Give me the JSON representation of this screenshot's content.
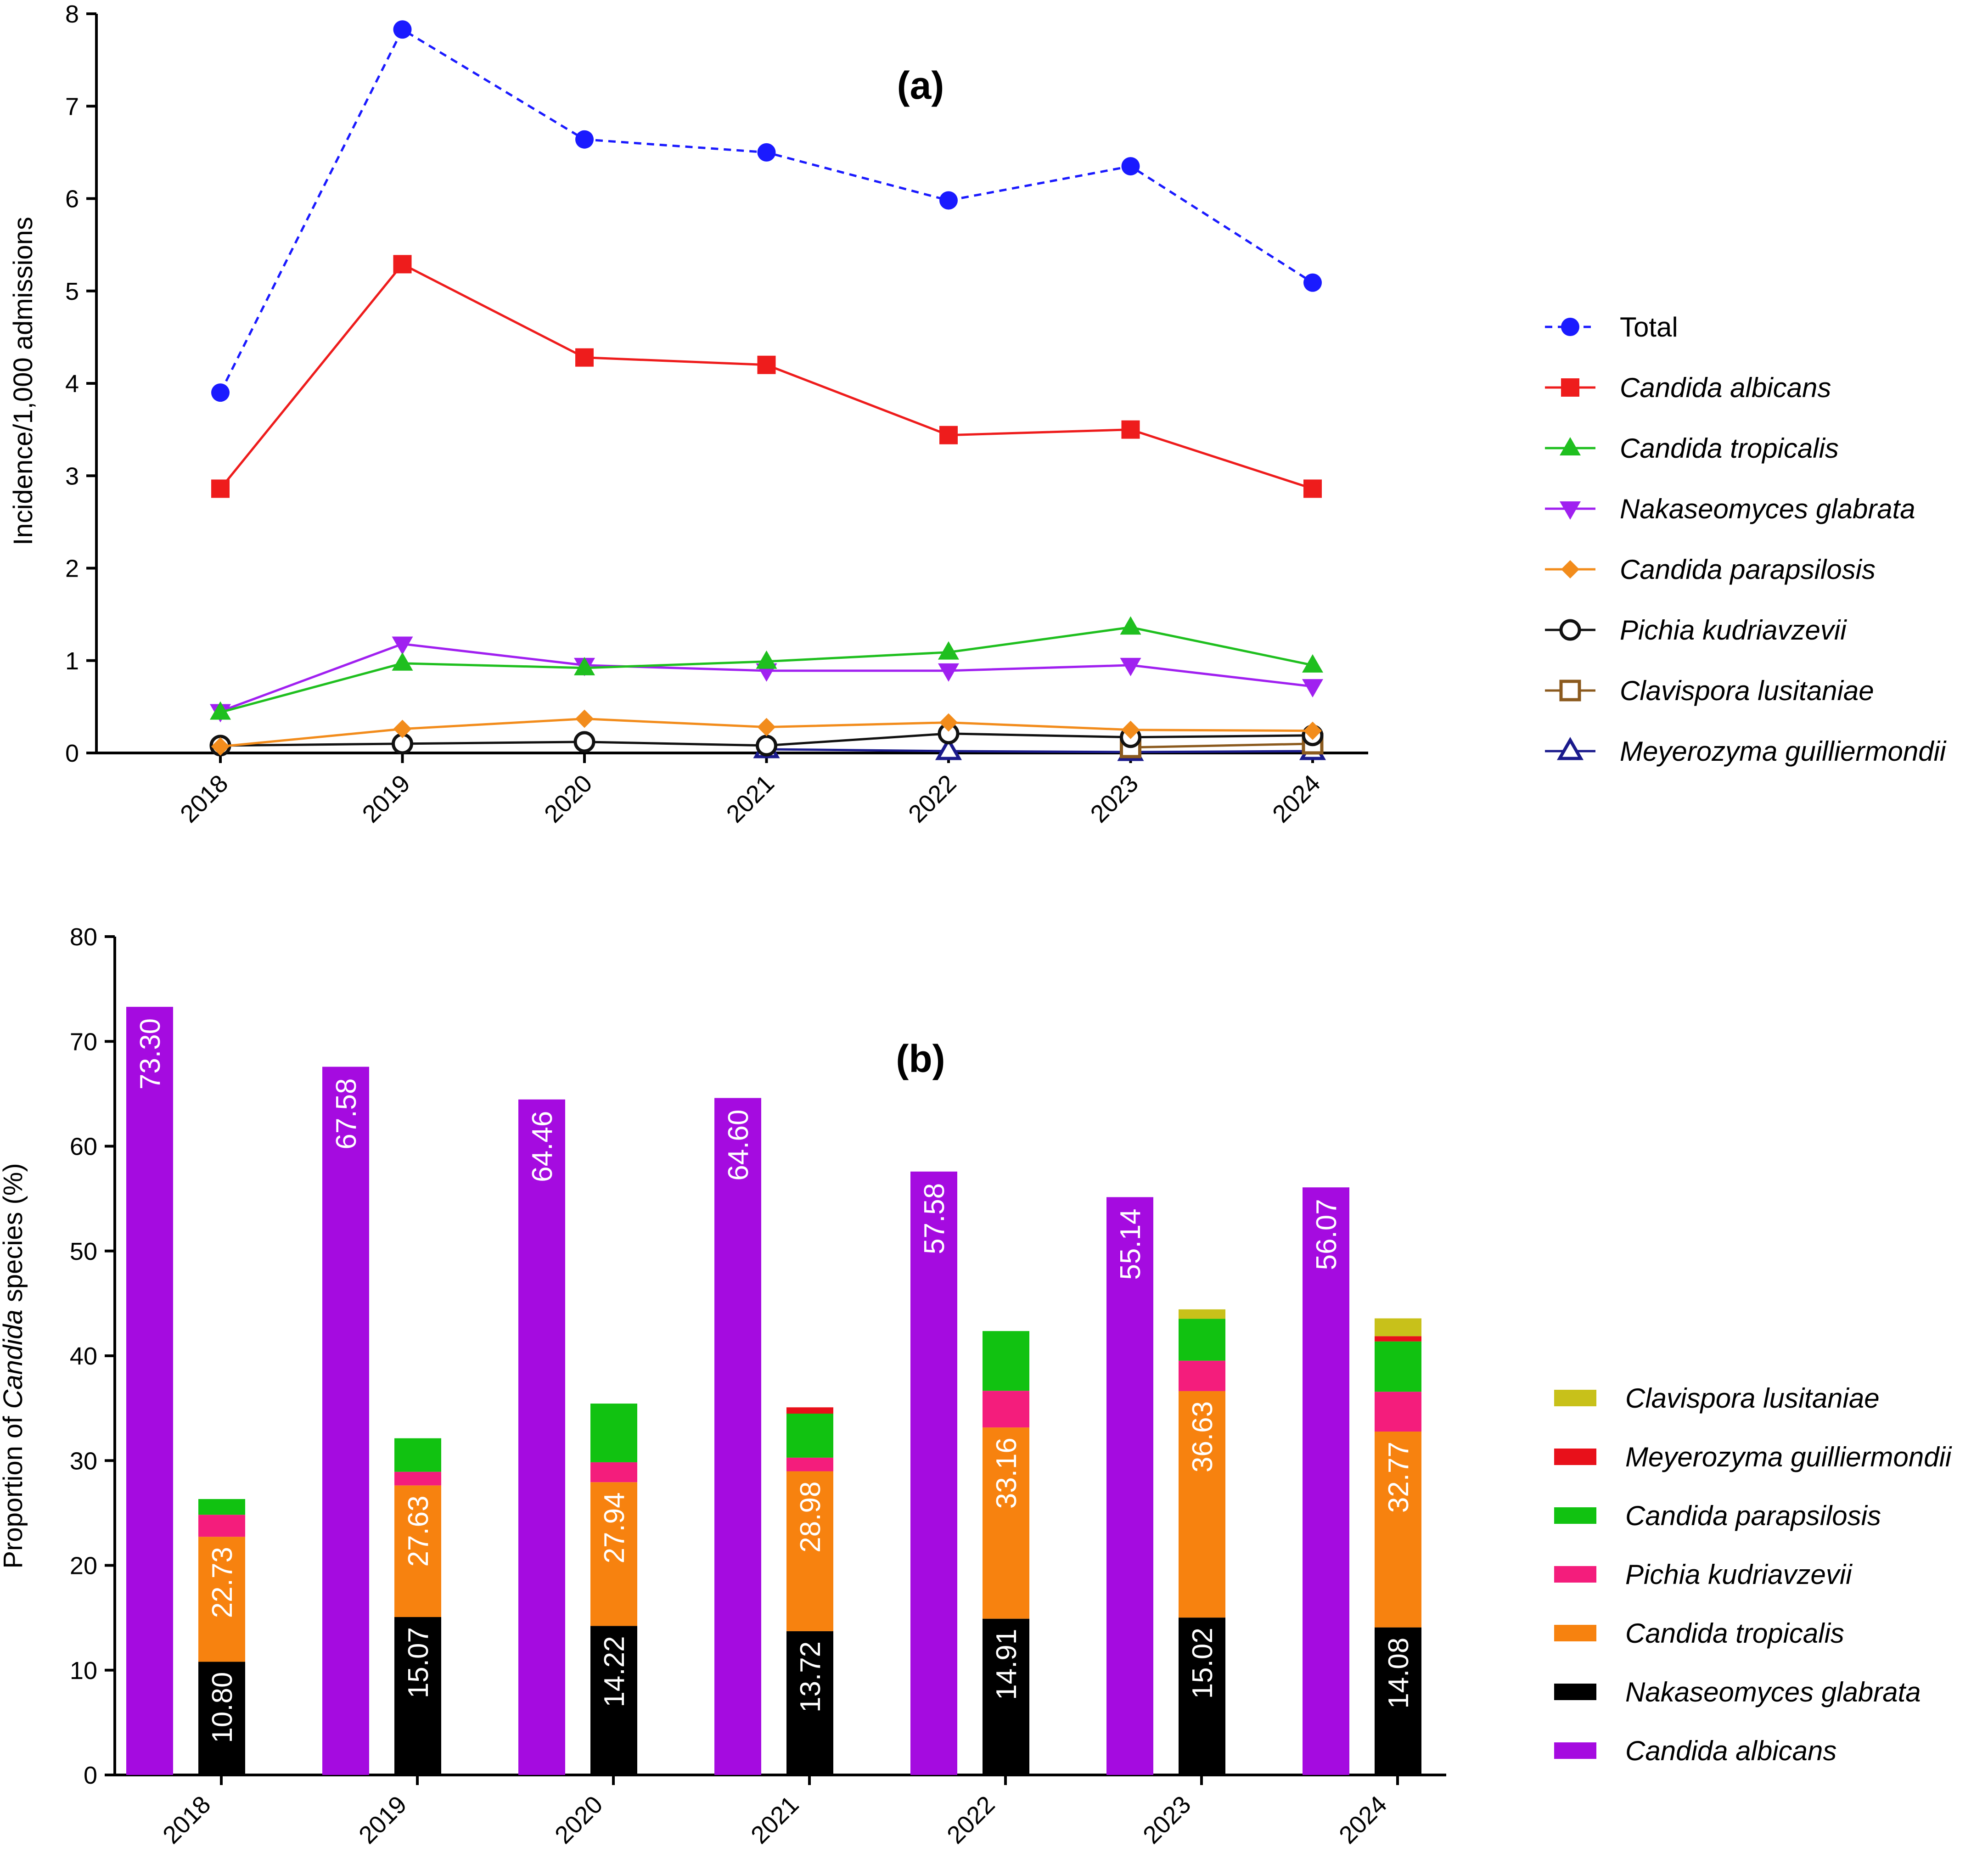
{
  "chart_data": [
    {
      "type": "line",
      "panel_label": "(a)",
      "ylabel": "Incidence/1,000 admissions",
      "ylim": [
        0,
        8
      ],
      "yticks": [
        "0",
        "1",
        "2",
        "3",
        "4",
        "5",
        "6",
        "7",
        "8"
      ],
      "x": [
        "2018",
        "2019",
        "2020",
        "2021",
        "2022",
        "2023",
        "2024"
      ],
      "series": [
        {
          "name": "Total",
          "italic": false,
          "color": "#1a1aff",
          "marker": "circle",
          "dash": true,
          "values": [
            3.9,
            7.83,
            6.64,
            6.5,
            5.98,
            6.35,
            5.09
          ]
        },
        {
          "name": "Candida albicans",
          "italic": true,
          "color": "#ee1c1c",
          "marker": "square",
          "dash": false,
          "values": [
            2.86,
            5.29,
            4.28,
            4.2,
            3.44,
            3.5,
            2.86
          ]
        },
        {
          "name": "Candida tropicalis",
          "italic": true,
          "color": "#1fbf1f",
          "marker": "triangle-up",
          "dash": false,
          "values": [
            0.44,
            0.97,
            0.92,
            0.99,
            1.09,
            1.36,
            0.95
          ]
        },
        {
          "name": "Nakaseomyces glabrata",
          "italic": true,
          "color": "#a020f0",
          "marker": "triangle-down",
          "dash": false,
          "values": [
            0.45,
            1.18,
            0.95,
            0.89,
            0.89,
            0.95,
            0.72
          ]
        },
        {
          "name": "Candida parapsilosis",
          "italic": true,
          "color": "#f28c1c",
          "marker": "diamond",
          "dash": false,
          "values": [
            0.07,
            0.26,
            0.37,
            0.28,
            0.33,
            0.25,
            0.24
          ]
        },
        {
          "name": "Pichia kudriavzevii",
          "italic": true,
          "color": "#111111",
          "marker": "circle-open",
          "dash": false,
          "values": [
            0.08,
            0.1,
            0.12,
            0.08,
            0.21,
            0.17,
            0.19
          ]
        },
        {
          "name": "Clavispora lusitaniae",
          "italic": true,
          "color": "#8b5a1e",
          "marker": "square-open",
          "dash": false,
          "values": [
            null,
            null,
            null,
            null,
            null,
            0.06,
            0.1
          ]
        },
        {
          "name": "Meyerozyma guilliermondii",
          "italic": true,
          "color": "#1a1a8c",
          "marker": "triangle-open",
          "dash": false,
          "values": [
            null,
            null,
            null,
            0.04,
            0.02,
            0.01,
            0.02
          ]
        }
      ]
    },
    {
      "type": "bar",
      "panel_label": "(b)",
      "ylabel_prefix": "Proportion of ",
      "ylabel_italic": "Candida",
      "ylabel_suffix": " species (%)",
      "ylim": [
        0,
        80
      ],
      "yticks": [
        "0",
        "10",
        "20",
        "30",
        "40",
        "50",
        "60",
        "70",
        "80"
      ],
      "categories": [
        "2018",
        "2019",
        "2020",
        "2021",
        "2022",
        "2023",
        "2024"
      ],
      "albicans": {
        "name": "Candida albicans",
        "color": "#a50be0",
        "values": [
          73.3,
          67.58,
          64.46,
          64.6,
          57.58,
          55.14,
          56.07
        ],
        "labels": [
          "73.30",
          "67.58",
          "64.46",
          "64.60",
          "57.58",
          "55.14",
          "56.07"
        ]
      },
      "stack": [
        {
          "name": "Nakaseomyces glabrata",
          "color": "#000000",
          "values": [
            10.8,
            15.07,
            14.22,
            13.72,
            14.91,
            15.02,
            14.08
          ],
          "labels": [
            "10.80",
            "15.07",
            "14.22",
            "13.72",
            "14.91",
            "15.02",
            "14.08"
          ]
        },
        {
          "name": "Candida tropicalis",
          "color": "#f7820f",
          "values": [
            11.93,
            12.56,
            13.72,
            15.26,
            18.25,
            21.61,
            18.69
          ],
          "labels": [
            "22.73",
            "27.63",
            "27.94",
            "28.98",
            "33.16",
            "36.63",
            "32.77"
          ]
        },
        {
          "name": "Pichia kudriavzevii",
          "color": "#f41d7c",
          "values": [
            2.1,
            1.3,
            1.9,
            1.3,
            3.5,
            2.9,
            3.8
          ]
        },
        {
          "name": "Candida parapsilosis",
          "color": "#11c211",
          "values": [
            1.5,
            3.2,
            5.6,
            4.2,
            5.7,
            4.0,
            4.8
          ]
        },
        {
          "name": "Meyerozyma guilliermondii",
          "color": "#e8101a",
          "values": [
            0,
            0,
            0,
            0.6,
            0,
            0,
            0.5
          ]
        },
        {
          "name": "Clavispora lusitaniae",
          "color": "#c8c11a",
          "values": [
            0,
            0,
            0,
            0,
            0,
            0.9,
            1.7
          ]
        }
      ],
      "legend_order": [
        {
          "name": "Clavispora lusitaniae",
          "color": "#c8c11a"
        },
        {
          "name": "Meyerozyma guilliermondii",
          "color": "#e8101a"
        },
        {
          "name": "Candida parapsilosis",
          "color": "#11c211"
        },
        {
          "name": "Pichia kudriavzevii",
          "color": "#f41d7c"
        },
        {
          "name": "Candida tropicalis",
          "color": "#f7820f"
        },
        {
          "name": "Nakaseomyces glabrata",
          "color": "#000000"
        },
        {
          "name": "Candida albicans",
          "color": "#a50be0"
        }
      ]
    }
  ]
}
